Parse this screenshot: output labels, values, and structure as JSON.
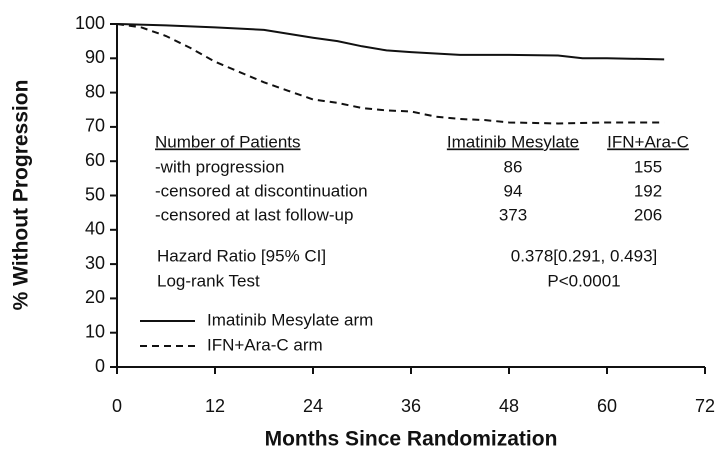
{
  "chart_data": {
    "type": "line",
    "x_label": "Months Since Randomization",
    "y_label": "% Without Progression",
    "xlim": [
      0,
      72
    ],
    "xticks": [
      0,
      12,
      24,
      36,
      48,
      60,
      72
    ],
    "ylim": [
      0,
      100
    ],
    "yticks": [
      0,
      10,
      20,
      30,
      40,
      50,
      60,
      70,
      80,
      90,
      100
    ],
    "series": [
      {
        "name": "Imatinib Mesylate arm",
        "color": "#111111",
        "dash": "solid",
        "x": [
          0,
          6,
          12,
          18,
          24,
          27,
          30,
          33,
          36,
          42,
          48,
          54,
          57,
          60,
          67
        ],
        "values": [
          100,
          99.6,
          99,
          98.3,
          96,
          95,
          93.5,
          92.3,
          91.8,
          91,
          91,
          90.8,
          90,
          90,
          89.7
        ]
      },
      {
        "name": "IFN+Ara-C arm",
        "color": "#111111",
        "dash": "dashed",
        "x": [
          0,
          3,
          6,
          9,
          12,
          15,
          18,
          21,
          24,
          27,
          30,
          33,
          36,
          39,
          42,
          45,
          48,
          54,
          60,
          67
        ],
        "values": [
          100,
          99,
          96.5,
          93,
          89,
          86,
          83,
          80.5,
          78,
          77,
          75.5,
          74.8,
          74.5,
          73,
          72.3,
          72,
          71.3,
          71,
          71.3,
          71.3
        ]
      }
    ],
    "table": {
      "columns": [
        "Number of Patients",
        "Imatinib Mesylate",
        "IFN+Ara-C"
      ],
      "rows": [
        [
          "-with progression",
          86,
          155
        ],
        [
          "-censored at discontinuation",
          94,
          192
        ],
        [
          "-censored at last follow-up",
          373,
          206
        ]
      ],
      "stats": [
        [
          "Hazard Ratio [95% CI]",
          "0.378[0.291, 0.493]"
        ],
        [
          "Log-rank Test",
          "P<0.0001"
        ]
      ]
    }
  }
}
